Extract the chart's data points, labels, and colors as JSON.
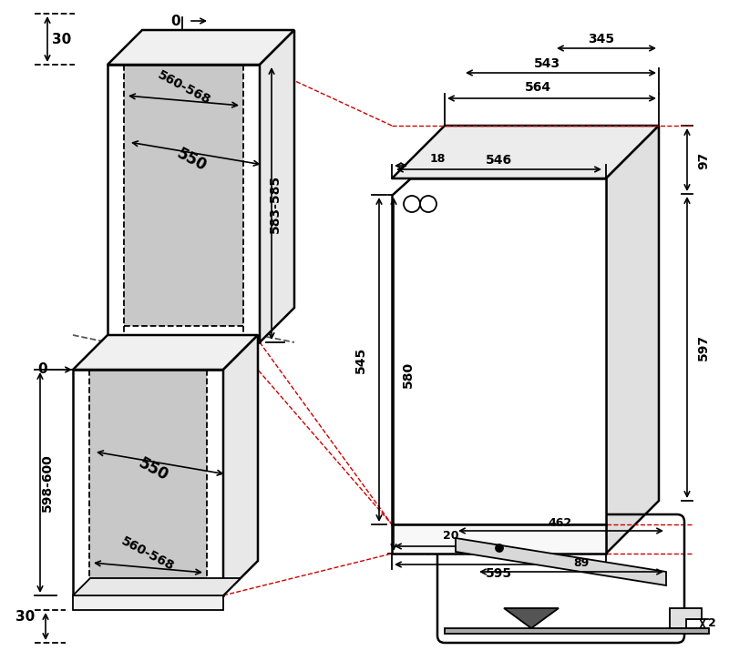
{
  "bg_color": "#ffffff",
  "line_color": "#000000",
  "gray_fill": "#c8c8c8",
  "light_gray": "#e0e0e0",
  "red_dash": "#cc0000",
  "dimensions": {
    "upper_cabinet_height": "583-585",
    "upper_cavity_width": "560-568",
    "upper_cavity_depth": "550",
    "lower_cabinet_height": "598-600",
    "lower_cavity_width": "560-568",
    "lower_cavity_depth": "550",
    "gap_top": "30",
    "gap_bottom": "30",
    "depth_546": "546",
    "depth_564": "564",
    "depth_543": "543",
    "depth_345": "345",
    "height_545": "545",
    "height_580": "580",
    "height_597": "597",
    "height_97": "97",
    "width_595": "595",
    "offset_18": "18",
    "offset_20": "20",
    "door_462": "462",
    "door_89": "89",
    "door_2": "2"
  }
}
